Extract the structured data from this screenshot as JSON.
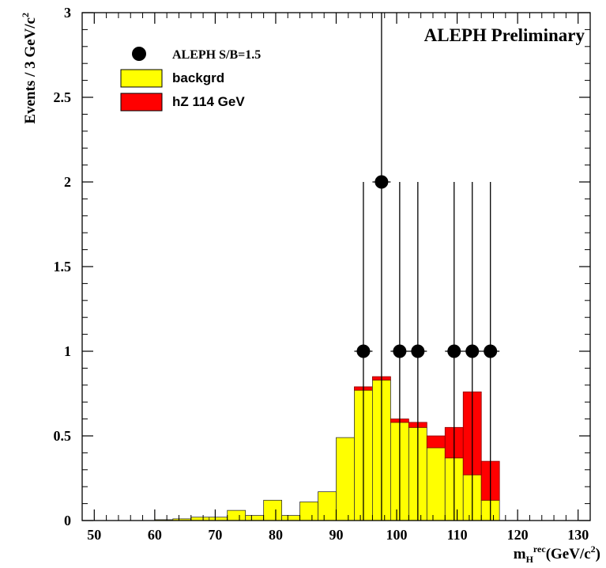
{
  "chart_data": {
    "type": "histogram",
    "annotation": "ALEPH Preliminary",
    "y_label": [
      "Events / 3 GeV/c",
      "2"
    ],
    "x_label": [
      "m",
      "H",
      "rec",
      "(GeV/c",
      "2",
      ")"
    ],
    "bins": [
      48,
      51,
      54,
      57,
      60,
      63,
      66,
      69,
      72,
      75,
      78,
      81,
      84,
      87,
      90,
      93,
      96,
      99,
      102,
      105,
      108,
      111,
      114,
      117,
      120,
      123,
      126,
      129,
      132
    ],
    "series": [
      {
        "name": "backgrd",
        "color": "#ffff00",
        "values": [
          0,
          0,
          0,
          0,
          0.005,
          0.01,
          0.02,
          0.02,
          0.06,
          0.03,
          0.12,
          0.03,
          0.11,
          0.17,
          0.49,
          0.77,
          0.83,
          0.58,
          0.55,
          0.43,
          0.37,
          0.27,
          0.12,
          0,
          0,
          0,
          0,
          0
        ]
      },
      {
        "name": "hZ 114 GeV",
        "color": "#ff0000",
        "values": [
          0,
          0,
          0,
          0,
          0,
          0,
          0,
          0,
          0,
          0,
          0,
          0,
          0,
          0,
          0,
          0.02,
          0.02,
          0.02,
          0.03,
          0.07,
          0.18,
          0.49,
          0.23,
          0,
          0,
          0,
          0,
          0
        ]
      }
    ],
    "points": {
      "name": "ALEPH S/B=1.5",
      "color": "#000000",
      "x": [
        94.5,
        97.5,
        100.5,
        103.5,
        109.5,
        112.5,
        115.5
      ],
      "values": [
        1,
        2,
        1,
        1,
        1,
        1,
        1
      ],
      "errors_low": [
        1,
        2,
        1,
        1,
        1,
        1,
        1
      ],
      "errors_high": [
        1,
        1,
        1,
        1,
        1,
        1,
        1
      ]
    },
    "xlim": [
      48,
      132
    ],
    "xticks": [
      50,
      60,
      70,
      80,
      90,
      100,
      110,
      120,
      130
    ],
    "ylim": [
      0,
      3
    ],
    "yticks": [
      0,
      0.5,
      1,
      1.5,
      2,
      2.5,
      3
    ]
  }
}
